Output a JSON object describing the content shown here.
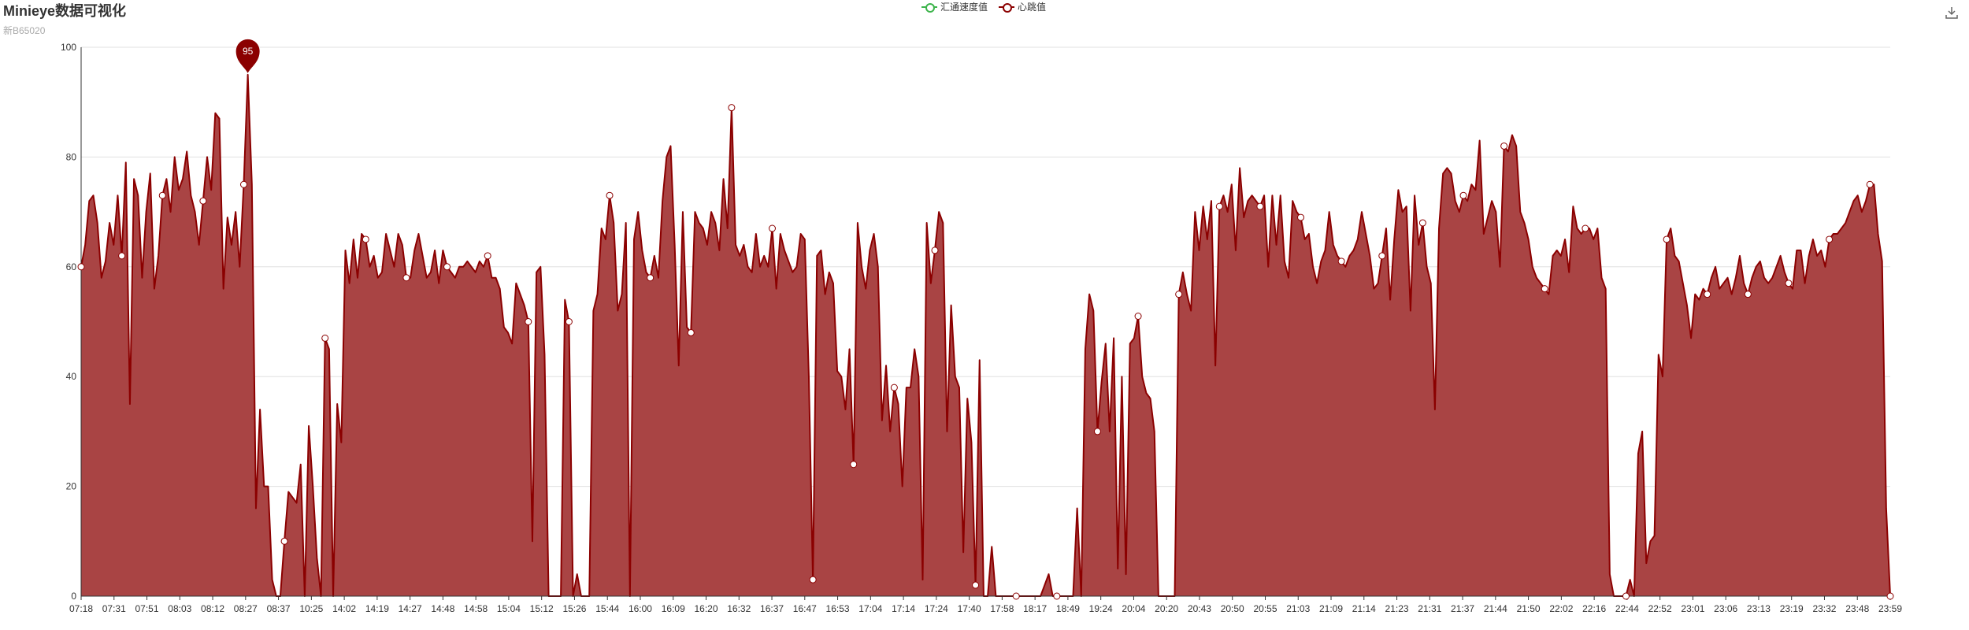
{
  "header": {
    "title": "Minieye数据可视化",
    "subtitle": "新B65020"
  },
  "legend": [
    {
      "name": "汇通速度值",
      "color": "#3cb44b"
    },
    {
      "name": "心跳值",
      "color": "#8b0000"
    }
  ],
  "icons": {
    "download": "download-icon"
  },
  "colors": {
    "line": "#8b0000",
    "area": "#a94444",
    "grid": "#e0e0e0",
    "axis": "#333333"
  },
  "chart_data": {
    "type": "area",
    "series": [
      {
        "name": "心跳值",
        "color": "#8b0000",
        "values": [
          60,
          64,
          72,
          73,
          68,
          58,
          61,
          68,
          64,
          73,
          62,
          79,
          35,
          76,
          73,
          58,
          70,
          77,
          56,
          62,
          73,
          76,
          70,
          80,
          74,
          76,
          81,
          73,
          70,
          64,
          72,
          80,
          74,
          88,
          87,
          56,
          69,
          64,
          70,
          60,
          75,
          95,
          75,
          16,
          34,
          20,
          20,
          3,
          0,
          0,
          10,
          19,
          18,
          17,
          24,
          0,
          31,
          20,
          7,
          0,
          47,
          45,
          0,
          35,
          28,
          63,
          57,
          65,
          58,
          66,
          65,
          60,
          62,
          58,
          59,
          66,
          63,
          60,
          66,
          64,
          58,
          58,
          63,
          66,
          62,
          58,
          59,
          63,
          57,
          63,
          60,
          59,
          58,
          60,
          60,
          61,
          60,
          59,
          61,
          60,
          62,
          58,
          58,
          56,
          49,
          48,
          46,
          57,
          55,
          53,
          50,
          10,
          59,
          60,
          44,
          0,
          0,
          0,
          0,
          54,
          50,
          0,
          4,
          0,
          0,
          0,
          52,
          55,
          67,
          65,
          73,
          68,
          52,
          55,
          68,
          0,
          65,
          70,
          63,
          59,
          58,
          62,
          58,
          72,
          80,
          82,
          64,
          42,
          70,
          49,
          48,
          70,
          68,
          67,
          64,
          70,
          68,
          63,
          76,
          67,
          89,
          64,
          62,
          64,
          60,
          59,
          66,
          60,
          62,
          60,
          67,
          56,
          66,
          63,
          61,
          59,
          60,
          66,
          65,
          40,
          3,
          62,
          63,
          55,
          59,
          57,
          41,
          40,
          34,
          45,
          24,
          68,
          60,
          56,
          63,
          66,
          60,
          32,
          42,
          30,
          38,
          35,
          20,
          38,
          38,
          45,
          40,
          3,
          68,
          57,
          63,
          70,
          68,
          30,
          53,
          40,
          38,
          8,
          36,
          28,
          2,
          43,
          0,
          0,
          9,
          0,
          0,
          0,
          0,
          0,
          0,
          0,
          0,
          0,
          0,
          0,
          0,
          2,
          4,
          0,
          0,
          0,
          0,
          0,
          0,
          16,
          0,
          45,
          55,
          52,
          30,
          39,
          46,
          30,
          47,
          5,
          40,
          4,
          46,
          47,
          51,
          40,
          37,
          36,
          30,
          0,
          0,
          0,
          0,
          0,
          55,
          59,
          55,
          52,
          70,
          63,
          71,
          65,
          72,
          42,
          71,
          73,
          70,
          75,
          63,
          78,
          69,
          72,
          73,
          72,
          71,
          73,
          60,
          73,
          64,
          73,
          61,
          58,
          72,
          70,
          69,
          65,
          66,
          60,
          57,
          61,
          63,
          70,
          64,
          62,
          61,
          60,
          62,
          63,
          65,
          70,
          66,
          62,
          56,
          57,
          62,
          67,
          54,
          65,
          74,
          70,
          71,
          52,
          73,
          64,
          68,
          60,
          57,
          34,
          67,
          77,
          78,
          77,
          72,
          70,
          73,
          72,
          75,
          74,
          83,
          66,
          69,
          72,
          70,
          60,
          82,
          81,
          84,
          82,
          70,
          68,
          65,
          60,
          58,
          57,
          56,
          55,
          62,
          63,
          62,
          65,
          59,
          71,
          67,
          66,
          67,
          67,
          65,
          67,
          58,
          56,
          4,
          0,
          0,
          0,
          0,
          3,
          0,
          26,
          30,
          6,
          10,
          11,
          44,
          40,
          65,
          67,
          62,
          61,
          57,
          53,
          47,
          55,
          54,
          56,
          55,
          58,
          60,
          56,
          57,
          58,
          55,
          58,
          62,
          57,
          55,
          58,
          60,
          61,
          58,
          57,
          58,
          60,
          62,
          59,
          57,
          56,
          63,
          63,
          57,
          62,
          65,
          62,
          63,
          60,
          65,
          66,
          66,
          67,
          68,
          70,
          72,
          73,
          70,
          72,
          75,
          75,
          66,
          61,
          16,
          0
        ]
      },
      {
        "name": "汇通速度值",
        "color": "#3cb44b",
        "values": []
      }
    ],
    "x_tick_labels": [
      "07:18",
      "07:31",
      "07:51",
      "08:03",
      "08:12",
      "08:27",
      "08:37",
      "10:25",
      "14:02",
      "14:19",
      "14:27",
      "14:48",
      "14:58",
      "15:04",
      "15:12",
      "15:26",
      "15:44",
      "16:00",
      "16:09",
      "16:20",
      "16:32",
      "16:37",
      "16:47",
      "16:53",
      "17:04",
      "17:14",
      "17:24",
      "17:40",
      "17:58",
      "18:17",
      "18:49",
      "19:24",
      "20:04",
      "20:20",
      "20:43",
      "20:50",
      "20:55",
      "21:03",
      "21:09",
      "21:14",
      "21:23",
      "21:31",
      "21:37",
      "21:44",
      "21:50",
      "22:02",
      "22:16",
      "22:44",
      "22:52",
      "23:01",
      "23:06",
      "23:13",
      "23:19",
      "23:32",
      "23:48",
      "23:59"
    ],
    "y_ticks": [
      0,
      20,
      40,
      60,
      80,
      100
    ],
    "ylim": [
      0,
      100
    ],
    "max_marker": {
      "label": "95",
      "value": 95
    },
    "grid": true,
    "legend_position": "top-center"
  }
}
